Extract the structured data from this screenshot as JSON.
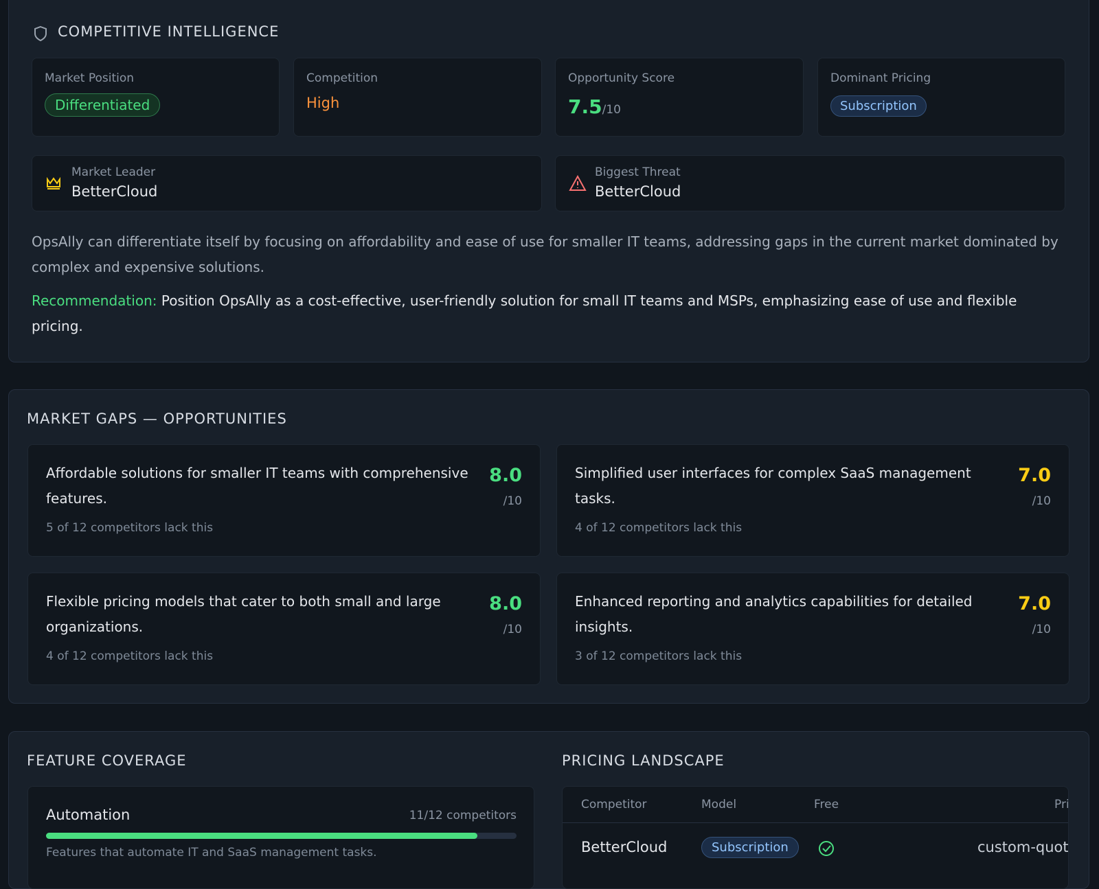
{
  "competitive_intelligence": {
    "title": "COMPETITIVE INTELLIGENCE",
    "stats": [
      {
        "label": "Market Position",
        "value": "Differentiated"
      },
      {
        "label": "Competition",
        "value": "High"
      },
      {
        "label": "Opportunity Score",
        "value": "7.5",
        "suffix": "/10"
      },
      {
        "label": "Dominant Pricing",
        "value": "Subscription"
      }
    ],
    "market_leader": {
      "label": "Market Leader",
      "value": "BetterCloud"
    },
    "biggest_threat": {
      "label": "Biggest Threat",
      "value": "BetterCloud"
    },
    "summary": "OpsAlly can differentiate itself by focusing on affordability and ease of use for smaller IT teams, addressing gaps in the current market dominated by complex and expensive solutions.",
    "recommendation_label": "Recommendation:",
    "recommendation": "Position OpsAlly as a cost-effective, user-friendly solution for small IT teams and MSPs, emphasizing ease of use and flexible pricing."
  },
  "market_gaps": {
    "title": "MARKET GAPS — OPPORTUNITIES",
    "gaps": [
      {
        "text": "Affordable solutions for smaller IT teams with comprehensive features.",
        "score": "8.0",
        "suffix": "/10",
        "note": "5 of 12 competitors lack this"
      },
      {
        "text": "Simplified user interfaces for complex SaaS management tasks.",
        "score": "7.0",
        "suffix": "/10",
        "note": "4 of 12 competitors lack this"
      },
      {
        "text": "Flexible pricing models that cater to both small and large organizations.",
        "score": "8.0",
        "suffix": "/10",
        "note": "4 of 12 competitors lack this"
      },
      {
        "text": "Enhanced reporting and analytics capabilities for detailed insights.",
        "score": "7.0",
        "suffix": "/10",
        "note": "3 of 12 competitors lack this"
      }
    ]
  },
  "feature_coverage": {
    "title": "FEATURE COVERAGE",
    "features": [
      {
        "name": "Automation",
        "count_label": "11/12 competitors",
        "covered": 11,
        "total": 12,
        "description": "Features that automate IT and SaaS management tasks."
      }
    ]
  },
  "pricing_landscape": {
    "title": "PRICING LANDSCAPE",
    "columns": [
      "Competitor",
      "Model",
      "Free",
      "Price"
    ],
    "rows": [
      {
        "competitor": "BetterCloud",
        "model": "Subscription",
        "price": "custom-quote"
      }
    ]
  }
}
